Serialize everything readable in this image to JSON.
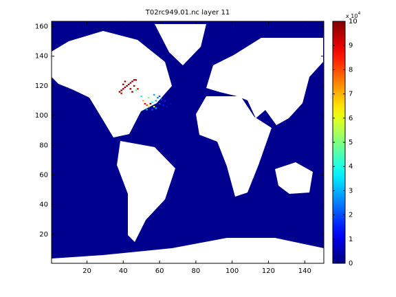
{
  "chart_data": {
    "type": "heatmap",
    "title": "T02rc949.01.nc layer 11",
    "xlim": [
      0.5,
      150.5
    ],
    "xticks": [
      20,
      40,
      60,
      80,
      100,
      120,
      140
    ],
    "ylim": [
      0.5,
      163.5
    ],
    "yticks": [
      20,
      40,
      60,
      80,
      100,
      120,
      140,
      160
    ],
    "colormap": "jet",
    "clim": [
      0,
      10
    ],
    "cticks": [
      0,
      1,
      2,
      3,
      4,
      5,
      6,
      7,
      8,
      9,
      10
    ],
    "colorbar_multiplier": "x 10",
    "colorbar_exponent": "4",
    "cells": {
      "x": [
        38,
        39,
        40,
        41,
        42,
        43,
        44,
        45,
        46,
        47,
        40,
        41,
        44,
        45,
        46,
        39,
        47,
        48,
        50,
        51,
        52,
        53,
        54,
        55,
        53,
        54,
        56,
        57,
        58,
        60,
        62,
        64,
        59,
        61,
        63,
        66,
        57,
        60,
        56,
        58
      ],
      "y": [
        116,
        117,
        118,
        119,
        120,
        121,
        122,
        123,
        124,
        124,
        121,
        123,
        118,
        116,
        120,
        115,
        117,
        118,
        113,
        110,
        108,
        107,
        106,
        108,
        104,
        112,
        109,
        106,
        110,
        108,
        107,
        106,
        112,
        111,
        110,
        108,
        114,
        113,
        104,
        105
      ],
      "values": [
        10,
        10,
        10,
        10,
        10,
        10,
        10,
        10,
        10,
        10,
        10,
        10,
        10,
        10,
        10,
        9,
        5,
        9,
        4,
        7,
        9,
        8,
        6,
        10,
        3,
        5,
        4,
        6,
        3,
        2,
        1.5,
        1,
        2.5,
        2,
        1.5,
        1,
        3,
        2,
        2,
        3
      ]
    }
  }
}
